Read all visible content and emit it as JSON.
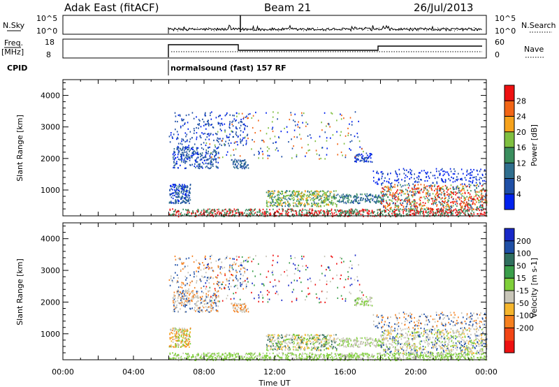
{
  "header": {
    "station": "Adak East (fitACF)",
    "beam": "Beam 21",
    "date": "26/Jul/2013"
  },
  "panels": {
    "nsky_label": "N.Sky",
    "nsky_ticks": [
      "10^5",
      "10^0"
    ],
    "nsearch_label": "N.Search",
    "nsearch_ticks": [
      "10^5",
      "10^0"
    ],
    "freq_label": "Freq.",
    "freq_unit": "[MHz]",
    "freq_ticks": [
      "18",
      "8"
    ],
    "nave_label": "Nave",
    "nave_ticks": [
      "60",
      "0"
    ],
    "cpid_label": "CPID",
    "cpid_text": "normalsound (fast) 157 RF"
  },
  "colors": {
    "power_scale": [
      "#0022ee",
      "#1f4fa6",
      "#2f6e8e",
      "#3a8e5e",
      "#7fbf40",
      "#f6a21c",
      "#f26515",
      "#ee1111"
    ],
    "velocity_scale": [
      "#ee1111",
      "#f24515",
      "#f6801e",
      "#f5b52c",
      "#c8c5b8",
      "#7fcf3a",
      "#3a9e4a",
      "#2f6e5e",
      "#1f4fa6",
      "#1828c8"
    ]
  },
  "chart_data": [
    {
      "type": "heatmap",
      "title": "Power",
      "ylabel": "Slant Range [km]",
      "xlabel": "Time UT",
      "x_ticks": [
        "00:00",
        "04:00",
        "08:00",
        "12:00",
        "16:00",
        "20:00",
        "00:00"
      ],
      "y_ticks": [
        "1000",
        "2000",
        "3000",
        "4000"
      ],
      "xlim_hours": [
        0,
        24
      ],
      "ylim_km": [
        180,
        4500
      ],
      "colorbar_label": "Power [dB]",
      "colorbar_ticks": [
        "4",
        "8",
        "12",
        "16",
        "20",
        "24",
        "28"
      ],
      "colorbar_range": [
        0,
        32
      ]
    },
    {
      "type": "heatmap",
      "title": "Velocity",
      "ylabel": "Slant Range [km]",
      "xlabel": "Time UT",
      "x_ticks": [
        "00:00",
        "04:00",
        "08:00",
        "12:00",
        "16:00",
        "20:00",
        "00:00"
      ],
      "y_ticks": [
        "1000",
        "2000",
        "3000",
        "4000"
      ],
      "xlim_hours": [
        0,
        24
      ],
      "ylim_km": [
        180,
        4500
      ],
      "colorbar_label": "Velocity [m s-1]",
      "colorbar_ticks": [
        "200",
        "100",
        "50",
        "15",
        "-15",
        "-50",
        "-100",
        "-200"
      ],
      "colorbar_range": [
        -250,
        250
      ]
    }
  ],
  "axis": {
    "xlabel": "Time UT",
    "x_ticks": [
      "00:00",
      "04:00",
      "08:00",
      "12:00",
      "16:00",
      "20:00",
      "00:00"
    ]
  }
}
